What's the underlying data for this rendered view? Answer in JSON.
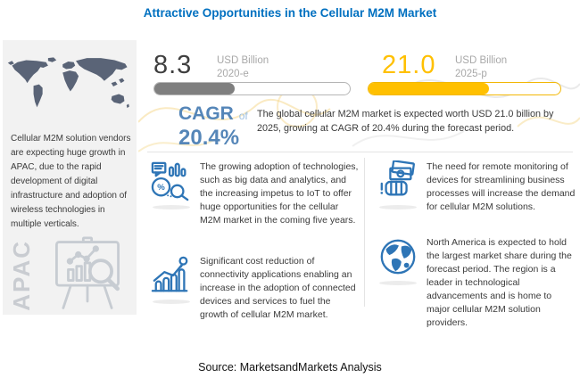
{
  "title": "Attractive Opportunities in the Cellular M2M Market",
  "colors": {
    "title_blue": "#0070C0",
    "icon_blue": "#2E75B6",
    "cagr_blue": "#5586B8",
    "bar_gray": "#7F7F7F",
    "bar_yellow": "#FFC000",
    "panel_gray": "#F2F2F2",
    "map_slate": "#5A6477"
  },
  "left_panel": {
    "map_icon": "world-map-icon",
    "description": "Cellular M2M solution vendors are expecting huge growth in APAC, due to the rapid development of digital infrastructure and adoption of wireless technologies in multiple verticals.",
    "region_label": "APAC",
    "chart_icon": "presentation-analytics-icon"
  },
  "stats": [
    {
      "value": "8.3",
      "unit": "USD Billion",
      "year": "2020-e",
      "fill_percent": 41,
      "bar_color": "#7F7F7F"
    },
    {
      "value": "21.0",
      "unit": "USD Billion",
      "year": "2025-p",
      "fill_percent": 63,
      "bar_color": "#FFC000"
    }
  ],
  "cagr": {
    "label": "CAGR",
    "of": "of",
    "value": "20.4%"
  },
  "summary": "The global cellular M2M market is expected worth USD 21.0 billion by 2025, growing at CAGR of 20.4% during the forecast period.",
  "opportunities": [
    {
      "icon": "big-data-analytics-icon",
      "text": "The growing adoption of technologies, such as big data and analytics, and the increasing impetus to IoT to offer huge opportunities for the cellular M2M market in the coming five years."
    },
    {
      "icon": "growth-chart-icon",
      "text": "Significant cost reduction of connectivity applications enabling an increase in the adoption of connected devices and services to fuel the growth of cellular M2M market."
    },
    {
      "icon": "money-hand-icon",
      "text": "The need for remote monitoring of devices for streamlining business processes will increase the demand for cellular M2M solutions."
    },
    {
      "icon": "globe-icon",
      "text": "North America is expected to hold the largest market share during the forecast period. The region is a leader in technological advancements and is home to major cellular M2M solution providers."
    }
  ],
  "source": "Source: MarketsandMarkets Analysis"
}
